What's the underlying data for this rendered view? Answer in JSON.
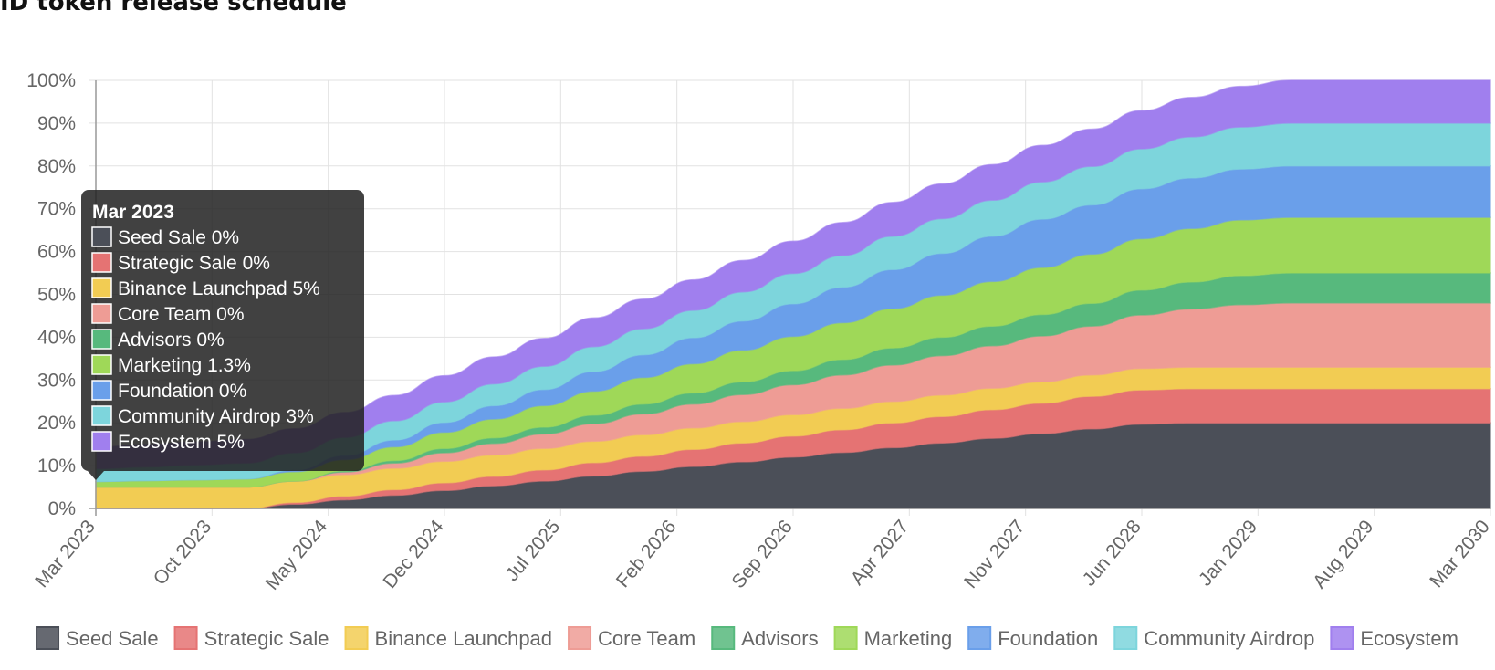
{
  "title": "ID token release schedule",
  "chart_data": {
    "type": "area",
    "stacked": true,
    "x_dates": [
      "2023-03",
      "2023-06",
      "2023-09",
      "2023-12",
      "2024-03",
      "2024-06",
      "2024-09",
      "2024-12",
      "2025-03",
      "2025-06",
      "2025-09",
      "2025-12",
      "2026-03",
      "2026-06",
      "2026-09",
      "2026-12",
      "2027-03",
      "2027-06",
      "2027-09",
      "2027-12",
      "2028-03",
      "2028-06",
      "2028-09",
      "2028-12",
      "2029-03",
      "2029-06",
      "2029-09",
      "2029-12",
      "2030-03"
    ],
    "x_tick_labels": [
      "Mar 2023",
      "Oct 2023",
      "May 2024",
      "Dec 2024",
      "Jul 2025",
      "Feb 2026",
      "Sep 2026",
      "Apr 2027",
      "Nov 2027",
      "Jun 2028",
      "Jan 2029",
      "Aug 2029",
      "Mar 2030"
    ],
    "y_tick_labels": [
      "0%",
      "10%",
      "20%",
      "30%",
      "40%",
      "50%",
      "60%",
      "70%",
      "80%",
      "90%",
      "100%"
    ],
    "ylim": [
      0,
      100
    ],
    "y_unit": "%",
    "grid": true,
    "legend_position": "bottom",
    "series": [
      {
        "name": "Seed Sale",
        "color": "#4b4f58",
        "values": [
          0,
          0,
          0,
          0,
          1,
          2,
          3.1,
          4.2,
          5.3,
          6.4,
          7.6,
          8.7,
          9.8,
          10.9,
          12,
          13.1,
          14.2,
          15.3,
          16.4,
          17.5,
          18.6,
          19.7,
          20,
          20,
          20,
          20,
          20,
          20,
          20
        ]
      },
      {
        "name": "Strategic Sale",
        "color": "#e57373",
        "values": [
          0,
          0,
          0,
          0,
          0.4,
          0.9,
          1.3,
          1.8,
          2.2,
          2.6,
          3.1,
          3.5,
          4,
          4.4,
          4.9,
          5.3,
          5.8,
          6.2,
          6.7,
          7.1,
          7.6,
          8,
          8,
          8,
          8,
          8,
          8,
          8,
          8
        ]
      },
      {
        "name": "Binance Launchpad",
        "color": "#f2cc53",
        "values": [
          5,
          5,
          5,
          5,
          5,
          5,
          5,
          5,
          5,
          5,
          5,
          5,
          5,
          5,
          5,
          5,
          5,
          5,
          5,
          5,
          5,
          5,
          5,
          5,
          5,
          5,
          5,
          5,
          5
        ]
      },
      {
        "name": "Core Team",
        "color": "#ee9c95",
        "values": [
          0,
          0,
          0,
          0,
          0,
          0.6,
          1.2,
          2,
          2.7,
          3.4,
          4.1,
          4.9,
          5.6,
          6.3,
          7,
          7.8,
          8.5,
          9.2,
          9.9,
          10.7,
          11.4,
          12.5,
          13.6,
          14.6,
          15,
          15,
          15,
          15,
          15
        ]
      },
      {
        "name": "Advisors",
        "color": "#57b97d",
        "values": [
          0,
          0,
          0,
          0,
          0,
          0.3,
          0.6,
          1,
          1.3,
          1.6,
          2,
          2.3,
          2.6,
          3,
          3.3,
          3.6,
          4,
          4.3,
          4.6,
          5,
          5.3,
          5.8,
          6.3,
          6.8,
          7,
          7,
          7,
          7,
          7
        ]
      },
      {
        "name": "Marketing",
        "color": "#9fd858",
        "values": [
          1.3,
          1.5,
          1.7,
          1.9,
          2.2,
          2.6,
          3.2,
          3.8,
          4.4,
          5,
          5.6,
          6.2,
          6.8,
          7.4,
          8,
          8.6,
          9.2,
          9.8,
          10.4,
          11,
          11.5,
          12,
          12.5,
          13,
          13,
          13,
          13,
          13,
          13
        ]
      },
      {
        "name": "Foundation",
        "color": "#6a9fea",
        "values": [
          0,
          0,
          0,
          0,
          0.4,
          1,
          1.6,
          2.3,
          3.1,
          3.8,
          4.6,
          5.3,
          6.1,
          6.8,
          7.6,
          8.3,
          9.1,
          9.8,
          10.6,
          11.3,
          11.5,
          11.7,
          11.8,
          11.9,
          12,
          12,
          12,
          12,
          12
        ]
      },
      {
        "name": "Community Airdrop",
        "color": "#7dd5dc",
        "values": [
          3,
          3.2,
          3.5,
          3.7,
          4,
          4.2,
          4.5,
          4.8,
          5.1,
          5.4,
          5.8,
          6.1,
          6.4,
          6.8,
          7.1,
          7.4,
          7.8,
          8.1,
          8.4,
          8.7,
          9,
          9.3,
          9.6,
          9.8,
          10,
          10,
          10,
          10,
          10
        ]
      },
      {
        "name": "Ecosystem",
        "color": "#a07fee",
        "values": [
          5,
          5.2,
          5.3,
          5.5,
          5.6,
          5.8,
          5.9,
          6.1,
          6.3,
          6.5,
          6.7,
          6.9,
          7.1,
          7.3,
          7.5,
          7.7,
          7.9,
          8.1,
          8.3,
          8.5,
          8.7,
          8.9,
          9.2,
          9.5,
          10,
          10,
          10,
          10,
          10
        ]
      }
    ],
    "tooltip": {
      "title": "Mar 2023",
      "items": [
        "Seed Sale 0%",
        "Strategic Sale 0%",
        "Binance Launchpad 5%",
        "Core Team 0%",
        "Advisors 0%",
        "Marketing 1.3%",
        "Foundation 0%",
        "Community Airdrop 3%",
        "Ecosystem 5%"
      ]
    }
  }
}
